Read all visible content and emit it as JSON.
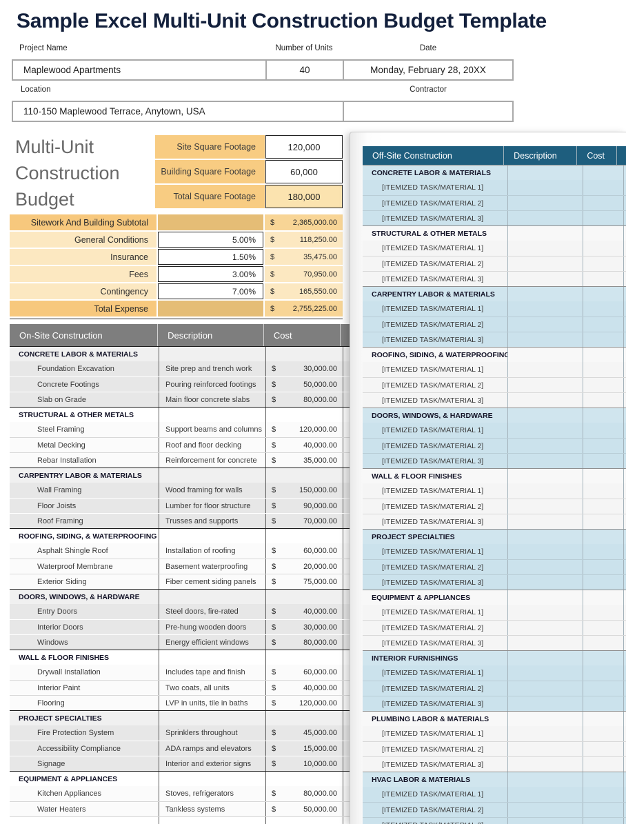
{
  "title": "Sample Excel Multi-Unit Construction Budget Template",
  "header_fields": {
    "project_name": {
      "label": "Project Name",
      "value": "Maplewood Apartments"
    },
    "number_of_units": {
      "label": "Number of Units",
      "value": "40"
    },
    "date": {
      "label": "Date",
      "value": "Monday, February 28, 20XX"
    },
    "location": {
      "label": "Location",
      "value": "110-150 Maplewood Terrace, Anytown, USA"
    },
    "contractor": {
      "label": "Contractor",
      "value": ""
    }
  },
  "budget_heading": "Multi-Unit Construction Budget",
  "square_footage": {
    "rows": [
      {
        "label": "Site Square Footage",
        "value": "120,000",
        "highlight": false
      },
      {
        "label": "Building Square Footage",
        "value": "60,000",
        "highlight": false
      },
      {
        "label": "Total Square Footage",
        "value": "180,000",
        "highlight": true
      }
    ]
  },
  "summary": {
    "rows": [
      {
        "label": "Sitework And Building Subtotal",
        "percent": "",
        "currency": "$",
        "amount": "2,365,000.00",
        "type": "total"
      },
      {
        "label": "General Conditions",
        "percent": "5.00%",
        "currency": "$",
        "amount": "118,250.00",
        "type": "line"
      },
      {
        "label": "Insurance",
        "percent": "1.50%",
        "currency": "$",
        "amount": "35,475.00",
        "type": "line"
      },
      {
        "label": "Fees",
        "percent": "3.00%",
        "currency": "$",
        "amount": "70,950.00",
        "type": "line"
      },
      {
        "label": "Contingency",
        "percent": "7.00%",
        "currency": "$",
        "amount": "165,550.00",
        "type": "line"
      },
      {
        "label": "Total Expense",
        "percent": "",
        "currency": "$",
        "amount": "2,755,225.00",
        "type": "total"
      }
    ]
  },
  "onsite_table": {
    "columns": [
      "On-Site Construction",
      "Description",
      "Cost"
    ],
    "groups": [
      {
        "category": "CONCRETE LABOR & MATERIALS",
        "items": [
          {
            "name": "Foundation Excavation",
            "description": "Site prep and trench work",
            "currency": "$",
            "cost": "30,000.00"
          },
          {
            "name": "Concrete Footings",
            "description": "Pouring reinforced footings",
            "currency": "$",
            "cost": "50,000.00"
          },
          {
            "name": "Slab on Grade",
            "description": "Main floor concrete slabs",
            "currency": "$",
            "cost": "80,000.00"
          }
        ]
      },
      {
        "category": "STRUCTURAL & OTHER METALS",
        "items": [
          {
            "name": "Steel Framing",
            "description": "Support beams and columns",
            "currency": "$",
            "cost": "120,000.00"
          },
          {
            "name": "Metal Decking",
            "description": "Roof and floor decking",
            "currency": "$",
            "cost": "40,000.00"
          },
          {
            "name": "Rebar Installation",
            "description": "Reinforcement for concrete",
            "currency": "$",
            "cost": "35,000.00"
          }
        ]
      },
      {
        "category": "CARPENTRY LABOR & MATERIALS",
        "items": [
          {
            "name": "Wall Framing",
            "description": "Wood framing for walls",
            "currency": "$",
            "cost": "150,000.00"
          },
          {
            "name": "Floor Joists",
            "description": "Lumber for floor structure",
            "currency": "$",
            "cost": "90,000.00"
          },
          {
            "name": "Roof Framing",
            "description": "Trusses and supports",
            "currency": "$",
            "cost": "70,000.00"
          }
        ]
      },
      {
        "category": "ROOFING, SIDING, & WATERPROOFING",
        "items": [
          {
            "name": "Asphalt Shingle Roof",
            "description": "Installation of roofing",
            "currency": "$",
            "cost": "60,000.00"
          },
          {
            "name": "Waterproof Membrane",
            "description": "Basement waterproofing",
            "currency": "$",
            "cost": "20,000.00"
          },
          {
            "name": "Exterior Siding",
            "description": "Fiber cement siding panels",
            "currency": "$",
            "cost": "75,000.00"
          }
        ]
      },
      {
        "category": "DOORS, WINDOWS, & HARDWARE",
        "items": [
          {
            "name": "Entry Doors",
            "description": "Steel doors, fire-rated",
            "currency": "$",
            "cost": "40,000.00"
          },
          {
            "name": "Interior Doors",
            "description": "Pre-hung wooden doors",
            "currency": "$",
            "cost": "30,000.00"
          },
          {
            "name": "Windows",
            "description": "Energy efficient windows",
            "currency": "$",
            "cost": "80,000.00"
          }
        ]
      },
      {
        "category": "WALL & FLOOR FINISHES",
        "items": [
          {
            "name": "Drywall Installation",
            "description": "Includes tape and finish",
            "currency": "$",
            "cost": "60,000.00"
          },
          {
            "name": "Interior Paint",
            "description": "Two coats, all units",
            "currency": "$",
            "cost": "40,000.00"
          },
          {
            "name": "Flooring",
            "description": "LVP in units, tile in baths",
            "currency": "$",
            "cost": "120,000.00"
          }
        ]
      },
      {
        "category": "PROJECT SPECIALTIES",
        "items": [
          {
            "name": "Fire Protection System",
            "description": "Sprinklers throughout",
            "currency": "$",
            "cost": "45,000.00"
          },
          {
            "name": "Accessibility Compliance",
            "description": "ADA ramps and elevators",
            "currency": "$",
            "cost": "15,000.00"
          },
          {
            "name": "Signage",
            "description": "Interior and exterior signs",
            "currency": "$",
            "cost": "10,000.00"
          }
        ]
      },
      {
        "category": "EQUIPMENT & APPLIANCES",
        "items": [
          {
            "name": "Kitchen Appliances",
            "description": "Stoves, refrigerators",
            "currency": "$",
            "cost": "80,000.00"
          },
          {
            "name": "Water Heaters",
            "description": "Tankless systems",
            "currency": "$",
            "cost": "50,000.00"
          }
        ]
      }
    ]
  },
  "offsite_table": {
    "columns": [
      "Off-Site Construction",
      "Description",
      "Cost"
    ],
    "item_placeholders": [
      "[ITEMIZED TASK/MATERIAL 1]",
      "[ITEMIZED TASK/MATERIAL 2]",
      "[ITEMIZED TASK/MATERIAL 3]"
    ],
    "groups": [
      {
        "category": "CONCRETE LABOR & MATERIALS"
      },
      {
        "category": "STRUCTURAL & OTHER METALS"
      },
      {
        "category": "CARPENTRY LABOR & MATERIALS"
      },
      {
        "category": "ROOFING, SIDING, & WATERPROOFING"
      },
      {
        "category": "DOORS, WINDOWS, & HARDWARE"
      },
      {
        "category": "WALL & FLOOR FINISHES"
      },
      {
        "category": "PROJECT SPECIALTIES"
      },
      {
        "category": "EQUIPMENT & APPLIANCES"
      },
      {
        "category": "INTERIOR FURNISHINGS"
      },
      {
        "category": "PLUMBING LABOR & MATERIALS"
      },
      {
        "category": "HVAC LABOR & MATERIALS"
      }
    ]
  },
  "colors": {
    "title_navy": "#13203c",
    "heading_gray": "#686868",
    "orange_strong": "#f7c87d",
    "orange_tan": "#e5bd76",
    "orange_value": "#f8d596",
    "orange_light": "#fce8c1",
    "sqft_label_orange": "#f8cc82",
    "sqft_total_cream": "#fbe3af",
    "onsite_header_gray": "#7e7e7e",
    "offsite_header_teal": "#1e5e7e",
    "group_gray": "#e7e7e7",
    "group_blue": "#cbe2ec"
  }
}
